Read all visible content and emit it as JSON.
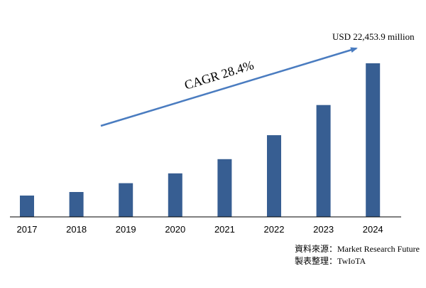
{
  "colors": {
    "bar": "#375e92",
    "arrow": "#4a7cc0",
    "axis": "#000000",
    "text": "#000000"
  },
  "chart_data": {
    "type": "bar",
    "categories": [
      "2017",
      "2018",
      "2019",
      "2020",
      "2021",
      "2022",
      "2023",
      "2024"
    ],
    "values": [
      2400,
      2800,
      3800,
      4900,
      6500,
      9200,
      12600,
      17300
    ],
    "ylim": [
      0,
      17300
    ],
    "grid": false,
    "legend": "none",
    "annotations": {
      "final_value_label": "USD 22,453.9 million",
      "cagr_label": "CAGR 28.4%"
    }
  },
  "source": {
    "line1_label": "資料來源：",
    "line1_value": "Market Research Future",
    "line2_label": "製表整理：",
    "line2_value": "TwIoTA"
  }
}
